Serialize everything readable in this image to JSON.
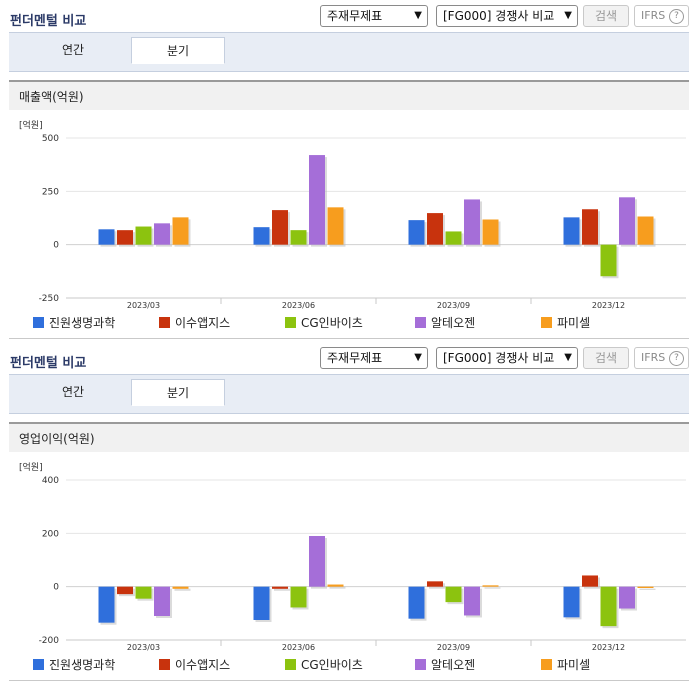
{
  "header_title": "펀더멘털 비교",
  "select_statement": "주재무제표",
  "select_compare": "[FG000] 경쟁사 비교",
  "search_label": "검색",
  "ifrs_label": "IFRS",
  "help_label": "?",
  "tabs": [
    "연간",
    "분기"
  ],
  "active_tab": "분기",
  "companies": [
    "진원생명과학",
    "이수앱지스",
    "CG인바이츠",
    "알테오젠",
    "파미셀"
  ],
  "colors": [
    "#2f6fdc",
    "#c8330d",
    "#8cc30f",
    "#a56ed8",
    "#f79d1e"
  ],
  "charts": [
    {
      "title": "매출액(억원)",
      "unit": "[억원]"
    },
    {
      "title": "영업이익(억원)",
      "unit": "[억원]"
    }
  ],
  "chart_data": [
    {
      "type": "bar",
      "title": "매출액(억원)",
      "ylabel": "[억원]",
      "categories": [
        "2023/03",
        "2023/06",
        "2023/09",
        "2023/12"
      ],
      "ylim": [
        -250,
        500
      ],
      "yticks": [
        500,
        250,
        0,
        -250
      ],
      "series": [
        {
          "name": "진원생명과학",
          "values": [
            72,
            82,
            115,
            128
          ]
        },
        {
          "name": "이수앱지스",
          "values": [
            68,
            162,
            148,
            166
          ]
        },
        {
          "name": "CG인바이츠",
          "values": [
            85,
            68,
            62,
            -148
          ]
        },
        {
          "name": "알테오젠",
          "values": [
            100,
            420,
            212,
            222
          ]
        },
        {
          "name": "파미셀",
          "values": [
            128,
            175,
            118,
            132
          ]
        }
      ],
      "legend": "bottom"
    },
    {
      "type": "bar",
      "title": "영업이익(억원)",
      "ylabel": "[억원]",
      "categories": [
        "2023/03",
        "2023/06",
        "2023/09",
        "2023/12"
      ],
      "ylim": [
        -200,
        400
      ],
      "yticks": [
        400,
        200,
        0,
        -200
      ],
      "series": [
        {
          "name": "진원생명과학",
          "values": [
            -135,
            -125,
            -120,
            -115
          ]
        },
        {
          "name": "이수앱지스",
          "values": [
            -28,
            -8,
            20,
            42
          ]
        },
        {
          "name": "CG인바이츠",
          "values": [
            -45,
            -78,
            -58,
            -148
          ]
        },
        {
          "name": "알테오젠",
          "values": [
            -110,
            190,
            -108,
            -82
          ]
        },
        {
          "name": "파미셀",
          "values": [
            -8,
            8,
            5,
            -5
          ]
        }
      ],
      "legend": "bottom"
    }
  ]
}
